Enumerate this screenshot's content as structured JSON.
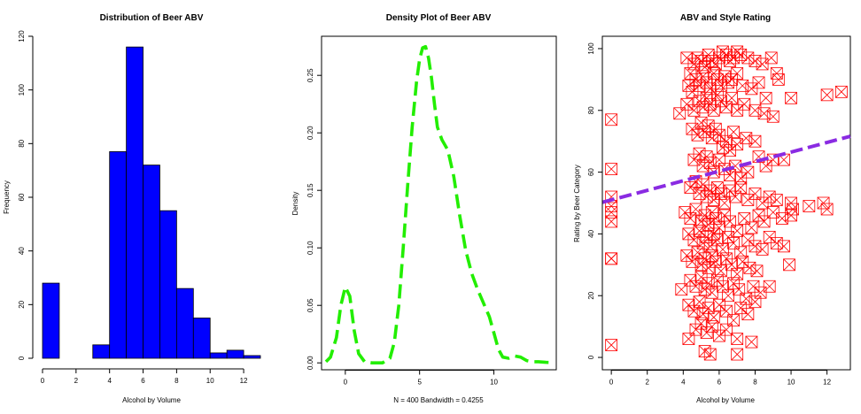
{
  "chart_data": [
    {
      "type": "bar",
      "title": "Distribution of Beer ABV",
      "xlabel": "Alcohol by Volume",
      "ylabel": "Frequency",
      "bin_edges": [
        0,
        1,
        2,
        3,
        4,
        5,
        6,
        7,
        8,
        9,
        10,
        11,
        12,
        13
      ],
      "values": [
        28,
        0,
        0,
        5,
        77,
        116,
        72,
        55,
        26,
        15,
        2,
        3,
        1
      ],
      "xlim": [
        0,
        13
      ],
      "ylim": [
        0,
        120
      ],
      "x_ticks": [
        0,
        2,
        4,
        6,
        8,
        10,
        12
      ],
      "y_ticks": [
        0,
        20,
        40,
        60,
        80,
        100,
        120
      ],
      "colors": {
        "bar_fill": "#0000FF",
        "bar_edge": "#000000"
      }
    },
    {
      "type": "line",
      "title": "Density Plot of Beer ABV",
      "xlabel": "N = 400   Bandwidth = 0.4255",
      "ylabel": "Density",
      "x": [
        -1.3,
        -1.0,
        -0.6,
        -0.3,
        0.0,
        0.3,
        0.6,
        0.9,
        1.3,
        1.8,
        2.5,
        3.0,
        3.3,
        3.6,
        3.9,
        4.2,
        4.5,
        4.8,
        5.0,
        5.2,
        5.4,
        5.6,
        5.8,
        6.0,
        6.2,
        6.5,
        6.9,
        7.3,
        7.7,
        8.1,
        8.5,
        8.9,
        9.3,
        9.7,
        10.0,
        10.3,
        10.6,
        11.0,
        11.4,
        11.8,
        12.2,
        12.6,
        13.0,
        13.5,
        14.0
      ],
      "y": [
        0.001,
        0.005,
        0.022,
        0.05,
        0.066,
        0.058,
        0.028,
        0.008,
        0.001,
        0.0,
        0.0,
        0.004,
        0.018,
        0.05,
        0.1,
        0.155,
        0.205,
        0.245,
        0.264,
        0.274,
        0.275,
        0.265,
        0.248,
        0.225,
        0.205,
        0.194,
        0.185,
        0.162,
        0.128,
        0.098,
        0.078,
        0.064,
        0.052,
        0.04,
        0.026,
        0.012,
        0.005,
        0.004,
        0.006,
        0.005,
        0.002,
        0.001,
        0.001,
        0.0005,
        0.0003
      ],
      "xlim": [
        -1.6,
        14.2
      ],
      "ylim": [
        -0.006,
        0.284
      ],
      "x_ticks": [
        0,
        5,
        10
      ],
      "y_ticks": [
        0.0,
        0.05,
        0.1,
        0.15,
        0.2,
        0.25
      ],
      "y_tick_labels": [
        "0.00",
        "0.05",
        "0.10",
        "0.15",
        "0.20",
        "0.25"
      ],
      "line_style": "dashed",
      "colors": {
        "line": "#22EE00"
      }
    },
    {
      "type": "scatter",
      "title": "ABV and Style Rating",
      "xlabel": "Alcohol by Volume",
      "ylabel": "Rating by Beer Category",
      "xlim": [
        -0.5,
        13.3
      ],
      "ylim": [
        -4,
        104
      ],
      "x_ticks": [
        0,
        2,
        4,
        6,
        8,
        10,
        12
      ],
      "y_ticks": [
        0,
        20,
        40,
        60,
        80,
        100
      ],
      "marker": "boxed-x",
      "regression": {
        "intercept": 51,
        "slope": 1.55
      },
      "colors": {
        "points": "#FF0000",
        "regression_line": "#8A2BE2"
      },
      "points": [
        [
          0,
          77
        ],
        [
          0,
          61
        ],
        [
          0,
          52
        ],
        [
          0,
          49
        ],
        [
          0,
          47
        ],
        [
          0,
          44
        ],
        [
          0,
          32
        ],
        [
          0,
          32
        ],
        [
          0,
          4
        ],
        [
          4.2,
          97
        ],
        [
          4.4,
          92
        ],
        [
          4.6,
          95
        ],
        [
          4.8,
          97
        ],
        [
          5.0,
          96
        ],
        [
          5.2,
          94
        ],
        [
          5.4,
          98
        ],
        [
          5.6,
          96
        ],
        [
          5.8,
          95
        ],
        [
          6.0,
          97
        ],
        [
          6.2,
          99
        ],
        [
          6.4,
          98
        ],
        [
          6.6,
          96
        ],
        [
          6.8,
          97
        ],
        [
          7.0,
          99
        ],
        [
          7.2,
          98
        ],
        [
          7.6,
          97
        ],
        [
          8.0,
          96
        ],
        [
          8.4,
          95
        ],
        [
          8.9,
          97
        ],
        [
          4.3,
          88
        ],
        [
          4.5,
          86
        ],
        [
          4.7,
          90
        ],
        [
          4.9,
          88
        ],
        [
          5.1,
          91
        ],
        [
          5.3,
          89
        ],
        [
          5.5,
          87
        ],
        [
          5.7,
          92
        ],
        [
          5.9,
          90
        ],
        [
          6.1,
          88
        ],
        [
          6.3,
          91
        ],
        [
          6.5,
          89
        ],
        [
          6.7,
          90
        ],
        [
          7.0,
          92
        ],
        [
          7.3,
          88
        ],
        [
          7.8,
          87
        ],
        [
          8.2,
          89
        ],
        [
          8.6,
          84
        ],
        [
          9.2,
          92
        ],
        [
          9.3,
          90
        ],
        [
          10.0,
          84
        ],
        [
          12.0,
          85
        ],
        [
          12.8,
          86
        ],
        [
          3.8,
          79
        ],
        [
          4.2,
          82
        ],
        [
          4.6,
          80
        ],
        [
          4.9,
          83
        ],
        [
          5.1,
          81
        ],
        [
          5.3,
          84
        ],
        [
          5.5,
          82
        ],
        [
          5.7,
          80
        ],
        [
          5.9,
          85
        ],
        [
          6.1,
          83
        ],
        [
          6.4,
          81
        ],
        [
          6.7,
          84
        ],
        [
          7.0,
          80
        ],
        [
          7.4,
          82
        ],
        [
          8.0,
          80
        ],
        [
          8.5,
          79
        ],
        [
          9.0,
          78
        ],
        [
          4.5,
          74
        ],
        [
          4.8,
          72
        ],
        [
          5.0,
          76
        ],
        [
          5.2,
          73
        ],
        [
          5.4,
          75
        ],
        [
          5.6,
          71
        ],
        [
          5.8,
          74
        ],
        [
          6.0,
          72
        ],
        [
          6.2,
          68
        ],
        [
          6.4,
          70
        ],
        [
          6.6,
          67
        ],
        [
          6.8,
          73
        ],
        [
          7.0,
          69
        ],
        [
          7.5,
          71
        ],
        [
          8.0,
          70
        ],
        [
          4.6,
          64
        ],
        [
          4.9,
          66
        ],
        [
          5.1,
          62
        ],
        [
          5.3,
          65
        ],
        [
          5.5,
          63
        ],
        [
          5.7,
          60
        ],
        [
          6.0,
          64
        ],
        [
          6.3,
          61
        ],
        [
          6.6,
          59
        ],
        [
          6.9,
          62
        ],
        [
          7.2,
          58
        ],
        [
          7.6,
          60
        ],
        [
          8.2,
          65
        ],
        [
          8.6,
          62
        ],
        [
          9.0,
          64
        ],
        [
          9.6,
          64
        ],
        [
          4.4,
          55
        ],
        [
          4.7,
          57
        ],
        [
          4.9,
          53
        ],
        [
          5.1,
          56
        ],
        [
          5.3,
          52
        ],
        [
          5.5,
          54
        ],
        [
          5.7,
          51
        ],
        [
          5.9,
          55
        ],
        [
          6.1,
          53
        ],
        [
          6.3,
          50
        ],
        [
          6.6,
          54
        ],
        [
          6.9,
          52
        ],
        [
          7.2,
          55
        ],
        [
          7.6,
          51
        ],
        [
          8.0,
          53
        ],
        [
          8.4,
          50
        ],
        [
          8.8,
          52
        ],
        [
          9.2,
          51
        ],
        [
          10.0,
          50
        ],
        [
          10.1,
          48
        ],
        [
          10.0,
          46
        ],
        [
          11.0,
          49
        ],
        [
          11.8,
          50
        ],
        [
          12.0,
          48
        ],
        [
          4.1,
          47
        ],
        [
          4.4,
          45
        ],
        [
          4.7,
          48
        ],
        [
          5.0,
          44
        ],
        [
          5.2,
          46
        ],
        [
          5.4,
          43
        ],
        [
          5.6,
          47
        ],
        [
          5.8,
          45
        ],
        [
          6.0,
          42
        ],
        [
          6.3,
          46
        ],
        [
          6.6,
          44
        ],
        [
          7.0,
          41
        ],
        [
          7.4,
          45
        ],
        [
          7.8,
          42
        ],
        [
          8.2,
          46
        ],
        [
          8.5,
          44
        ],
        [
          9.0,
          47
        ],
        [
          9.5,
          45
        ],
        [
          4.3,
          40
        ],
        [
          4.6,
          38
        ],
        [
          4.9,
          41
        ],
        [
          5.1,
          37
        ],
        [
          5.3,
          39
        ],
        [
          5.5,
          36
        ],
        [
          5.7,
          40
        ],
        [
          5.9,
          38
        ],
        [
          6.2,
          35
        ],
        [
          6.5,
          39
        ],
        [
          6.8,
          37
        ],
        [
          7.2,
          34
        ],
        [
          7.6,
          38
        ],
        [
          8.0,
          36
        ],
        [
          8.4,
          35
        ],
        [
          8.8,
          39
        ],
        [
          9.2,
          37
        ],
        [
          9.6,
          36
        ],
        [
          9.9,
          30
        ],
        [
          4.2,
          33
        ],
        [
          4.5,
          31
        ],
        [
          4.8,
          34
        ],
        [
          5.0,
          30
        ],
        [
          5.2,
          32
        ],
        [
          5.4,
          29
        ],
        [
          5.6,
          33
        ],
        [
          5.8,
          31
        ],
        [
          6.1,
          28
        ],
        [
          6.4,
          32
        ],
        [
          6.7,
          30
        ],
        [
          7.0,
          27
        ],
        [
          7.3,
          31
        ],
        [
          7.7,
          29
        ],
        [
          8.1,
          28
        ],
        [
          4.4,
          25
        ],
        [
          4.7,
          23
        ],
        [
          5.0,
          26
        ],
        [
          5.2,
          22
        ],
        [
          5.4,
          24
        ],
        [
          5.6,
          21
        ],
        [
          5.9,
          25
        ],
        [
          6.2,
          23
        ],
        [
          6.5,
          20
        ],
        [
          6.8,
          24
        ],
        [
          7.1,
          22
        ],
        [
          7.5,
          19
        ],
        [
          7.9,
          23
        ],
        [
          8.3,
          21
        ],
        [
          8.8,
          23
        ],
        [
          3.9,
          22
        ],
        [
          4.3,
          17
        ],
        [
          4.6,
          15
        ],
        [
          4.9,
          18
        ],
        [
          5.1,
          14
        ],
        [
          5.4,
          16
        ],
        [
          5.7,
          13
        ],
        [
          6.0,
          17
        ],
        [
          6.4,
          15
        ],
        [
          6.8,
          12
        ],
        [
          7.2,
          16
        ],
        [
          7.6,
          14
        ],
        [
          8.0,
          18
        ],
        [
          4.7,
          9
        ],
        [
          5.0,
          11
        ],
        [
          5.3,
          8
        ],
        [
          5.6,
          10
        ],
        [
          6.0,
          7
        ],
        [
          6.4,
          9
        ],
        [
          7.0,
          6
        ],
        [
          4.3,
          6
        ],
        [
          7.8,
          5
        ],
        [
          5.2,
          2
        ],
        [
          5.5,
          1
        ],
        [
          7.0,
          1
        ]
      ]
    }
  ]
}
